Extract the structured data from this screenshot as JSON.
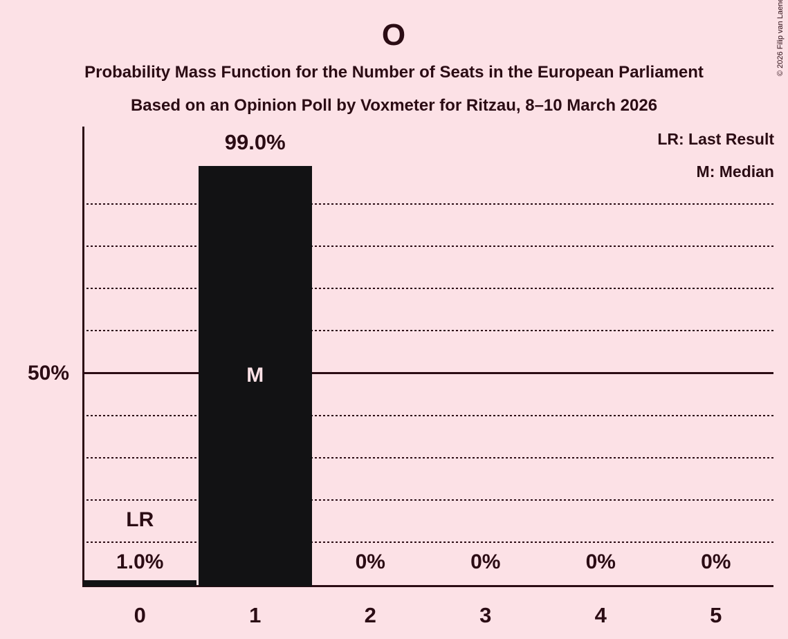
{
  "header": {
    "title": "O",
    "subtitle1": "Probability Mass Function for the Number of Seats in the European Parliament",
    "subtitle2": "Based on an Opinion Poll by Voxmeter for Ritzau, 8–10 March 2026"
  },
  "legend": {
    "lr": "LR: Last Result",
    "m": "M: Median"
  },
  "copyright": "© 2026 Filip van Laenen",
  "colors": {
    "background": "#fce1e6",
    "ink": "#2b0c14",
    "bar": "#121214",
    "bar_inner_label": "#fce1e6"
  },
  "chart_data": {
    "type": "bar",
    "title": "O",
    "categories": [
      "0",
      "1",
      "2",
      "3",
      "4",
      "5"
    ],
    "values": [
      1.0,
      99.0,
      0,
      0,
      0,
      0
    ],
    "value_labels": [
      "1.0%",
      "99.0%",
      "0%",
      "0%",
      "0%",
      "0%"
    ],
    "annotations": [
      {
        "category_index": 0,
        "text": "LR"
      },
      {
        "category_index": 1,
        "text": "M"
      }
    ],
    "y_axis": {
      "tick_label": "50%",
      "tick_value": 50,
      "gridlines_percent": [
        10,
        20,
        30,
        40,
        50,
        60,
        70,
        80,
        90
      ],
      "solid_line_percent": 50,
      "ylim": [
        0,
        108
      ]
    },
    "xlabel": "",
    "ylabel": "",
    "grid": "dotted-horizontal",
    "legend_position": "top-right"
  }
}
